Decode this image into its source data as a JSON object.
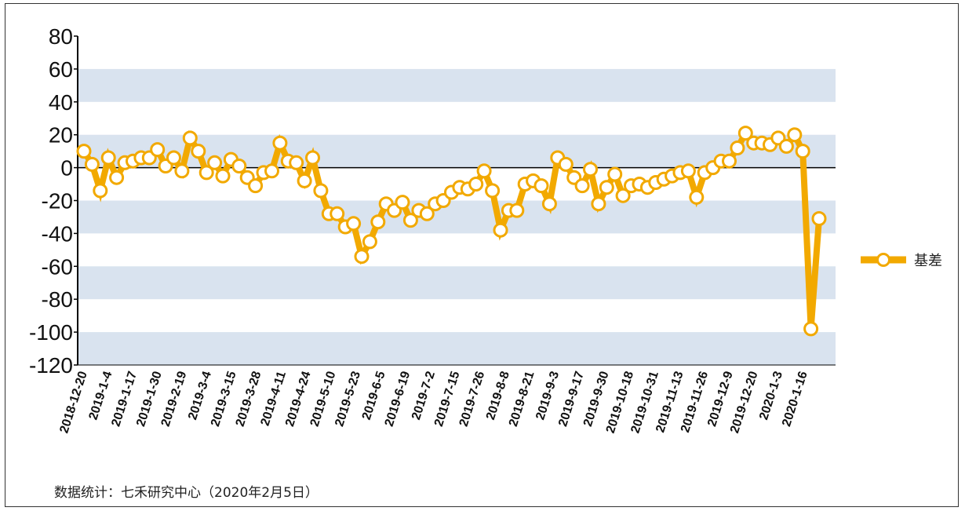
{
  "colors": {
    "series": "#F2A900",
    "band": "#D9E3EF",
    "marker_fill": "#FFFFFF",
    "axis": "#000000"
  },
  "source_text": "数据统计：七禾研究中心（2020年2月5日）",
  "chart_data": {
    "type": "line",
    "title": "",
    "xlabel": "",
    "ylabel": "",
    "ylim": [
      -120,
      80
    ],
    "y_ticks": [
      80,
      60,
      40,
      20,
      0,
      -20,
      -40,
      -60,
      -80,
      -100,
      -120
    ],
    "y_tick_labels": [
      "80",
      "60",
      "40",
      "20",
      "0",
      "-20",
      "-40",
      "-60",
      "-80",
      "-100",
      "-120"
    ],
    "x_tick_labels": [
      "2018-12-20",
      "2019-1-4",
      "2019-1-17",
      "2019-1-30",
      "2019-2-19",
      "2019-3-4",
      "2019-3-15",
      "2019-3-28",
      "2019-4-11",
      "2019-4-24",
      "2019-5-10",
      "2019-5-23",
      "2019-6-5",
      "2019-6-19",
      "2019-7-2",
      "2019-7-15",
      "2019-7-26",
      "2019-8-8",
      "2019-8-21",
      "2019-9-3",
      "2019-9-17",
      "2019-9-30",
      "2019-10-18",
      "2019-10-31",
      "2019-11-13",
      "2019-11-26",
      "2019-12-9",
      "2019-12-20",
      "2020-1-3",
      "2020-1-16"
    ],
    "grid": "alternating horizontal bands",
    "legend_position": "right",
    "series": [
      {
        "name": "基差",
        "marker": "circle",
        "values": [
          10,
          2,
          -14,
          6,
          -6,
          3,
          4,
          6,
          6,
          11,
          1,
          6,
          -2,
          18,
          10,
          -3,
          3,
          -5,
          5,
          1,
          -6,
          -11,
          -3,
          -2,
          15,
          4,
          3,
          -8,
          6,
          -14,
          -28,
          -28,
          -36,
          -34,
          -54,
          -45,
          -33,
          -22,
          -26,
          -21,
          -32,
          -26,
          -28,
          -22,
          -20,
          -15,
          -12,
          -13,
          -10,
          -2,
          -14,
          -38,
          -26,
          -26,
          -10,
          -8,
          -11,
          -22,
          6,
          2,
          -6,
          -11,
          -1,
          -22,
          -12,
          -4,
          -17,
          -11,
          -10,
          -12,
          -9,
          -7,
          -5,
          -3,
          -2,
          -18,
          -3,
          0,
          4,
          4,
          12,
          21,
          15,
          15,
          14,
          18,
          13,
          20,
          10,
          -98,
          -31
        ]
      }
    ]
  }
}
